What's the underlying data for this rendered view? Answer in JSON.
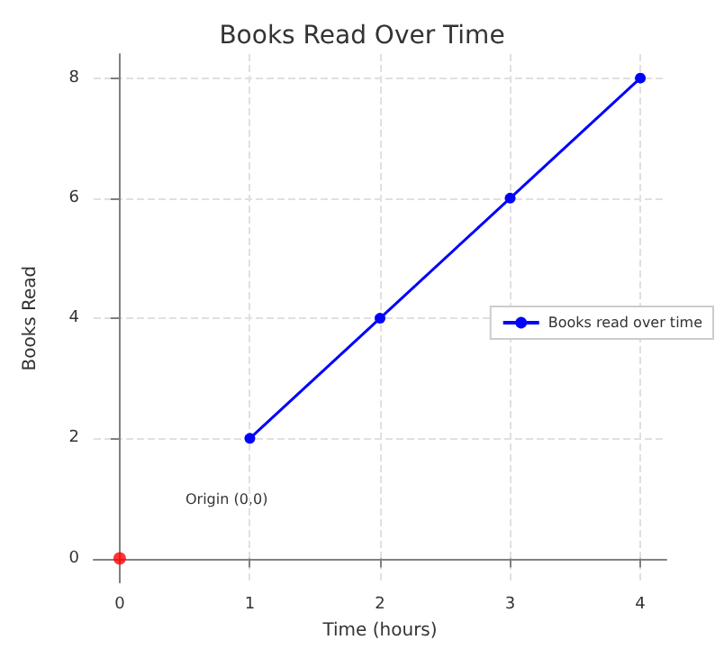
{
  "chart_data": {
    "type": "line",
    "title": "Books Read Over Time",
    "xlabel": "Time (hours)",
    "ylabel": "Books Read",
    "xlim": [
      -0.2,
      4.2
    ],
    "ylim": [
      -0.4,
      8.4
    ],
    "xticks": [
      0,
      1,
      2,
      3,
      4
    ],
    "yticks": [
      0,
      2,
      4,
      6,
      8
    ],
    "series": [
      {
        "name": "Books read over time",
        "color": "#0000ff",
        "x": [
          1,
          2,
          3,
          4
        ],
        "values": [
          2,
          4,
          6,
          8
        ],
        "marker": "circle",
        "line_style": "solid"
      },
      {
        "type": "scatter",
        "color": "#ff0000",
        "x": [
          0
        ],
        "values": [
          0
        ],
        "marker": "circle"
      }
    ],
    "annotations": [
      "Origin (0,0)"
    ],
    "grid": true,
    "legend": "right"
  }
}
